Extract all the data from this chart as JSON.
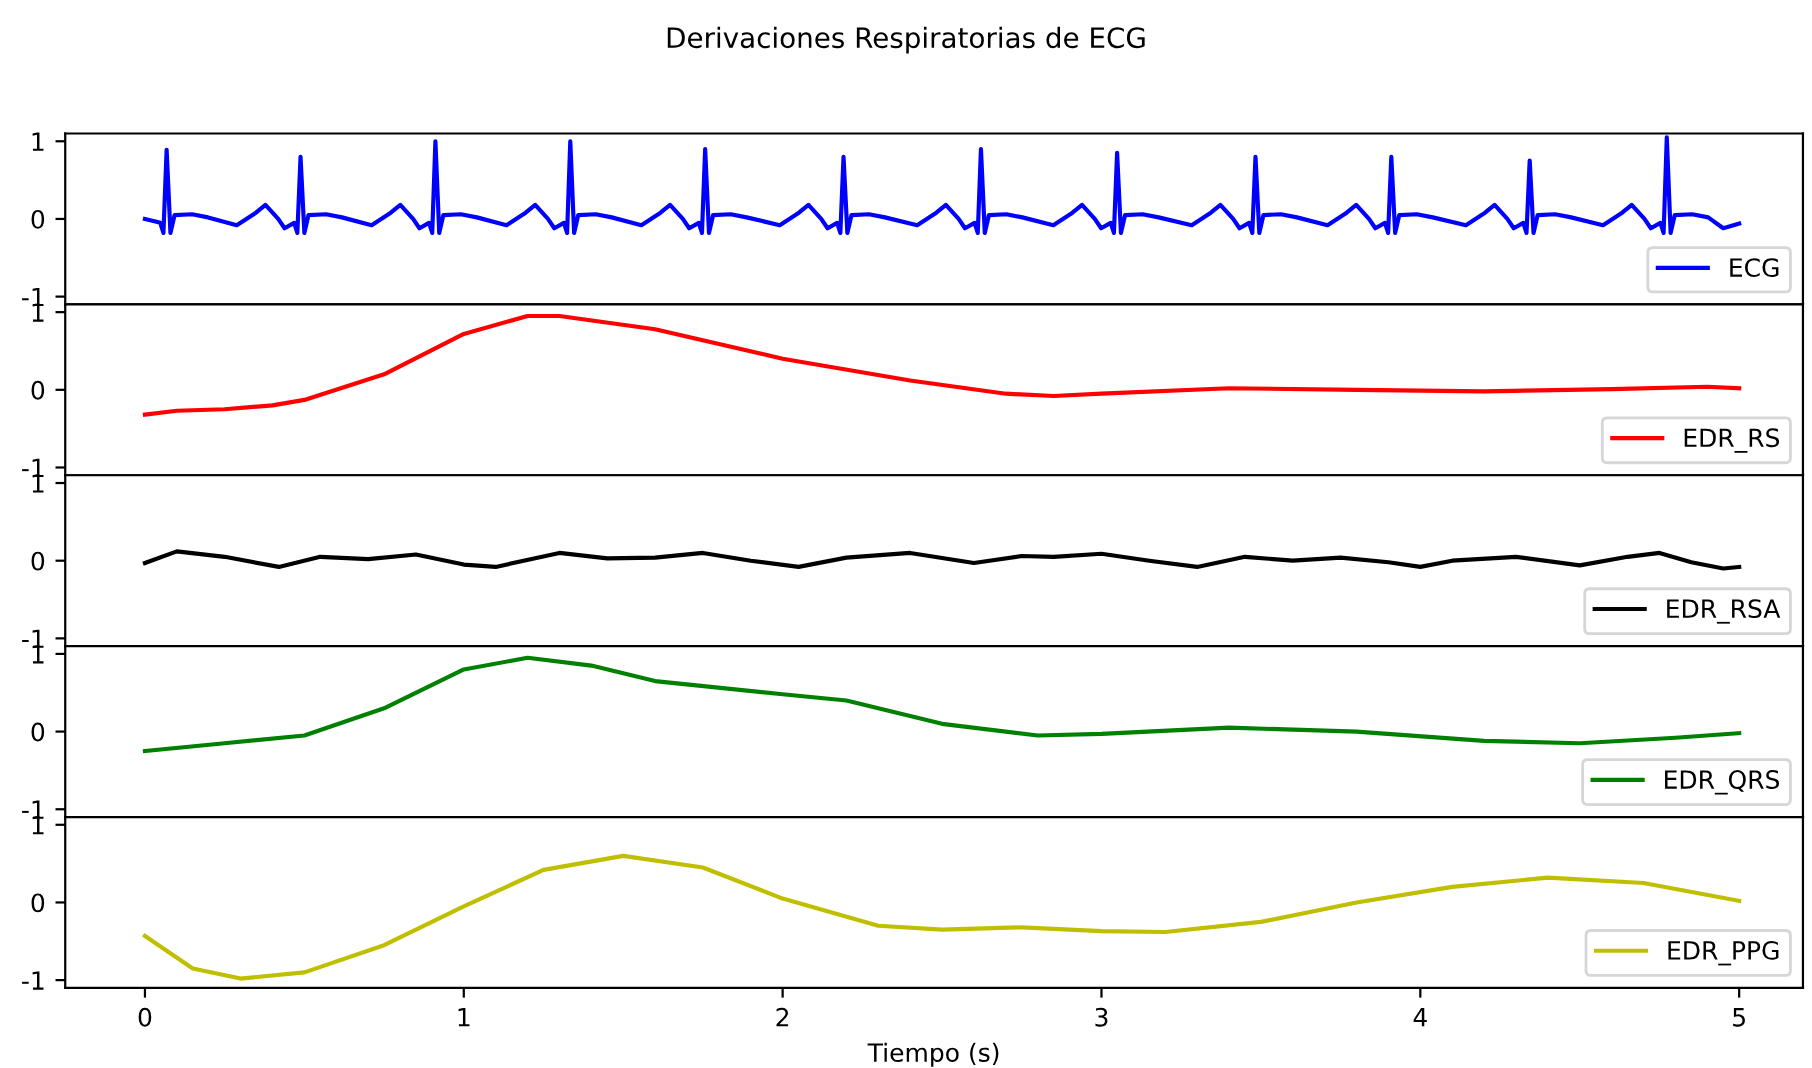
{
  "chart_data": [
    {
      "type": "line",
      "title": "Derivaciones Respiratorias de ECG",
      "xlim": [
        -0.25,
        5.2
      ],
      "xticks": [
        0,
        1,
        2,
        3,
        4,
        5
      ],
      "ylim": [
        -1.1,
        1.1
      ],
      "yticks": [
        -1,
        0,
        1
      ],
      "tick_labels": "y",
      "legend": "lower right",
      "grid": false,
      "series": [
        {
          "name": "ECG",
          "color": "#0000ff",
          "x": [
            0,
            0.03,
            0.048,
            0.058,
            0.068,
            0.08,
            0.093,
            0.148,
            0.198,
            0.288,
            0.348,
            0.378,
            0.418,
            0.438,
            0.468,
            0.478,
            0.488,
            0.5,
            0.513,
            0.568,
            0.618,
            0.711,
            0.771,
            0.801,
            0.841,
            0.861,
            0.891,
            0.901,
            0.911,
            0.923,
            0.936,
            0.991,
            1.041,
            1.134,
            1.194,
            1.224,
            1.264,
            1.284,
            1.314,
            1.324,
            1.334,
            1.346,
            1.359,
            1.414,
            1.464,
            1.557,
            1.617,
            1.647,
            1.687,
            1.707,
            1.737,
            1.747,
            1.757,
            1.769,
            1.782,
            1.837,
            1.887,
            1.991,
            2.051,
            2.081,
            2.121,
            2.141,
            2.171,
            2.181,
            2.191,
            2.203,
            2.216,
            2.271,
            2.321,
            2.422,
            2.482,
            2.512,
            2.552,
            2.572,
            2.602,
            2.612,
            2.622,
            2.634,
            2.647,
            2.702,
            2.752,
            2.849,
            2.909,
            2.939,
            2.979,
            2.999,
            3.029,
            3.039,
            3.049,
            3.061,
            3.074,
            3.129,
            3.179,
            3.283,
            3.343,
            3.373,
            3.413,
            3.433,
            3.463,
            3.473,
            3.483,
            3.495,
            3.508,
            3.563,
            3.613,
            3.709,
            3.769,
            3.799,
            3.839,
            3.859,
            3.889,
            3.899,
            3.909,
            3.921,
            3.934,
            3.989,
            4.039,
            4.143,
            4.203,
            4.233,
            4.273,
            4.293,
            4.323,
            4.333,
            4.343,
            4.355,
            4.368,
            4.423,
            4.473,
            4.573,
            4.633,
            4.663,
            4.703,
            4.723,
            4.753,
            4.763,
            4.773,
            4.785,
            4.798,
            4.853,
            4.903,
            4.95,
            5.0
          ],
          "values": [
            0.0,
            -0.03,
            -0.05,
            -0.18,
            0.89,
            -0.18,
            0.05,
            0.06,
            0.02,
            -0.08,
            0.08,
            0.18,
            0.0,
            -0.12,
            -0.05,
            -0.18,
            0.8,
            -0.18,
            0.05,
            0.06,
            0.02,
            -0.08,
            0.08,
            0.18,
            0.0,
            -0.12,
            -0.05,
            -0.18,
            1.0,
            -0.18,
            0.05,
            0.06,
            0.02,
            -0.08,
            0.08,
            0.18,
            0.0,
            -0.12,
            -0.05,
            -0.18,
            1.0,
            -0.18,
            0.05,
            0.06,
            0.02,
            -0.08,
            0.08,
            0.18,
            0.0,
            -0.12,
            -0.05,
            -0.18,
            0.9,
            -0.18,
            0.05,
            0.06,
            0.02,
            -0.08,
            0.08,
            0.18,
            0.0,
            -0.12,
            -0.05,
            -0.18,
            0.8,
            -0.18,
            0.05,
            0.06,
            0.02,
            -0.08,
            0.08,
            0.18,
            0.0,
            -0.12,
            -0.05,
            -0.18,
            0.9,
            -0.18,
            0.05,
            0.06,
            0.02,
            -0.08,
            0.08,
            0.18,
            0.0,
            -0.12,
            -0.05,
            -0.18,
            0.85,
            -0.18,
            0.05,
            0.06,
            0.02,
            -0.08,
            0.08,
            0.18,
            0.0,
            -0.12,
            -0.05,
            -0.18,
            0.8,
            -0.18,
            0.05,
            0.06,
            0.02,
            -0.08,
            0.08,
            0.18,
            0.0,
            -0.12,
            -0.05,
            -0.18,
            0.8,
            -0.18,
            0.05,
            0.06,
            0.02,
            -0.08,
            0.08,
            0.18,
            0.0,
            -0.12,
            -0.05,
            -0.18,
            0.75,
            -0.18,
            0.05,
            0.06,
            0.02,
            -0.08,
            0.08,
            0.18,
            0.0,
            -0.12,
            -0.05,
            -0.18,
            1.05,
            -0.18,
            0.05,
            0.06,
            0.02,
            -0.12,
            -0.06
          ]
        }
      ]
    },
    {
      "type": "line",
      "xlim": [
        -0.25,
        5.2
      ],
      "xticks": [
        0,
        1,
        2,
        3,
        4,
        5
      ],
      "ylim": [
        -1.1,
        1.1
      ],
      "yticks": [
        -1,
        0,
        1
      ],
      "tick_labels": "y",
      "legend": "lower right",
      "grid": false,
      "series": [
        {
          "name": "EDR_RS",
          "color": "#ff0000",
          "x": [
            0,
            0.1,
            0.25,
            0.4,
            0.5,
            0.75,
            1.0,
            1.2,
            1.3,
            1.6,
            2.0,
            2.4,
            2.7,
            2.85,
            3.0,
            3.4,
            3.8,
            4.2,
            4.6,
            4.9,
            5.0
          ],
          "values": [
            -0.32,
            -0.27,
            -0.25,
            -0.2,
            -0.13,
            0.2,
            0.72,
            0.95,
            0.95,
            0.78,
            0.4,
            0.12,
            -0.05,
            -0.08,
            -0.05,
            0.02,
            0.0,
            -0.02,
            0.01,
            0.04,
            0.02
          ]
        }
      ]
    },
    {
      "type": "line",
      "xlim": [
        -0.25,
        5.2
      ],
      "xticks": [
        0,
        1,
        2,
        3,
        4,
        5
      ],
      "ylim": [
        -1.1,
        1.1
      ],
      "yticks": [
        -1,
        0,
        1
      ],
      "tick_labels": "y",
      "legend": "lower right",
      "grid": false,
      "series": [
        {
          "name": "EDR_RSA",
          "color": "#000000",
          "x": [
            0,
            0.1,
            0.25,
            0.42,
            0.55,
            0.7,
            0.85,
            1.0,
            1.1,
            1.3,
            1.45,
            1.6,
            1.75,
            1.9,
            2.05,
            2.2,
            2.4,
            2.6,
            2.75,
            2.85,
            3.0,
            3.15,
            3.3,
            3.45,
            3.6,
            3.75,
            3.9,
            4.0,
            4.1,
            4.3,
            4.5,
            4.65,
            4.75,
            4.85,
            4.95,
            5.0
          ],
          "values": [
            -0.03,
            0.12,
            0.05,
            -0.08,
            0.05,
            0.02,
            0.08,
            -0.05,
            -0.08,
            0.1,
            0.03,
            0.04,
            0.1,
            0.0,
            -0.08,
            0.04,
            0.1,
            -0.03,
            0.06,
            0.05,
            0.09,
            0.0,
            -0.08,
            0.05,
            0.0,
            0.04,
            -0.02,
            -0.08,
            0.0,
            0.05,
            -0.06,
            0.05,
            0.1,
            -0.02,
            -0.1,
            -0.08
          ]
        }
      ]
    },
    {
      "type": "line",
      "xlim": [
        -0.25,
        5.2
      ],
      "xticks": [
        0,
        1,
        2,
        3,
        4,
        5
      ],
      "ylim": [
        -1.1,
        1.1
      ],
      "yticks": [
        -1,
        0,
        1
      ],
      "tick_labels": "y",
      "legend": "lower right",
      "grid": false,
      "series": [
        {
          "name": "EDR_QRS",
          "color": "#008000",
          "x": [
            0,
            0.25,
            0.5,
            0.75,
            1.0,
            1.2,
            1.4,
            1.6,
            2.0,
            2.2,
            2.5,
            2.8,
            3.0,
            3.4,
            3.8,
            4.2,
            4.5,
            4.8,
            5.0
          ],
          "values": [
            -0.25,
            -0.15,
            -0.05,
            0.3,
            0.8,
            0.95,
            0.85,
            0.65,
            0.48,
            0.4,
            0.1,
            -0.05,
            -0.03,
            0.05,
            0.0,
            -0.12,
            -0.15,
            -0.08,
            -0.02
          ]
        }
      ]
    },
    {
      "type": "line",
      "xlabel": "Tiempo (s)",
      "xlim": [
        -0.25,
        5.2
      ],
      "xticks": [
        0,
        1,
        2,
        3,
        4,
        5
      ],
      "ylim": [
        -1.1,
        1.1
      ],
      "yticks": [
        -1,
        0,
        1
      ],
      "legend": "lower right",
      "grid": false,
      "series": [
        {
          "name": "EDR_PPG",
          "color": "#bfbf00",
          "x": [
            0,
            0.15,
            0.3,
            0.5,
            0.75,
            1.0,
            1.25,
            1.5,
            1.75,
            2.0,
            2.3,
            2.5,
            2.75,
            3.0,
            3.2,
            3.5,
            3.8,
            4.1,
            4.4,
            4.7,
            5.0
          ],
          "values": [
            -0.43,
            -0.85,
            -0.98,
            -0.9,
            -0.55,
            -0.05,
            0.42,
            0.6,
            0.45,
            0.05,
            -0.3,
            -0.35,
            -0.32,
            -0.37,
            -0.38,
            -0.25,
            0.0,
            0.2,
            0.32,
            0.25,
            0.02
          ]
        }
      ]
    }
  ]
}
